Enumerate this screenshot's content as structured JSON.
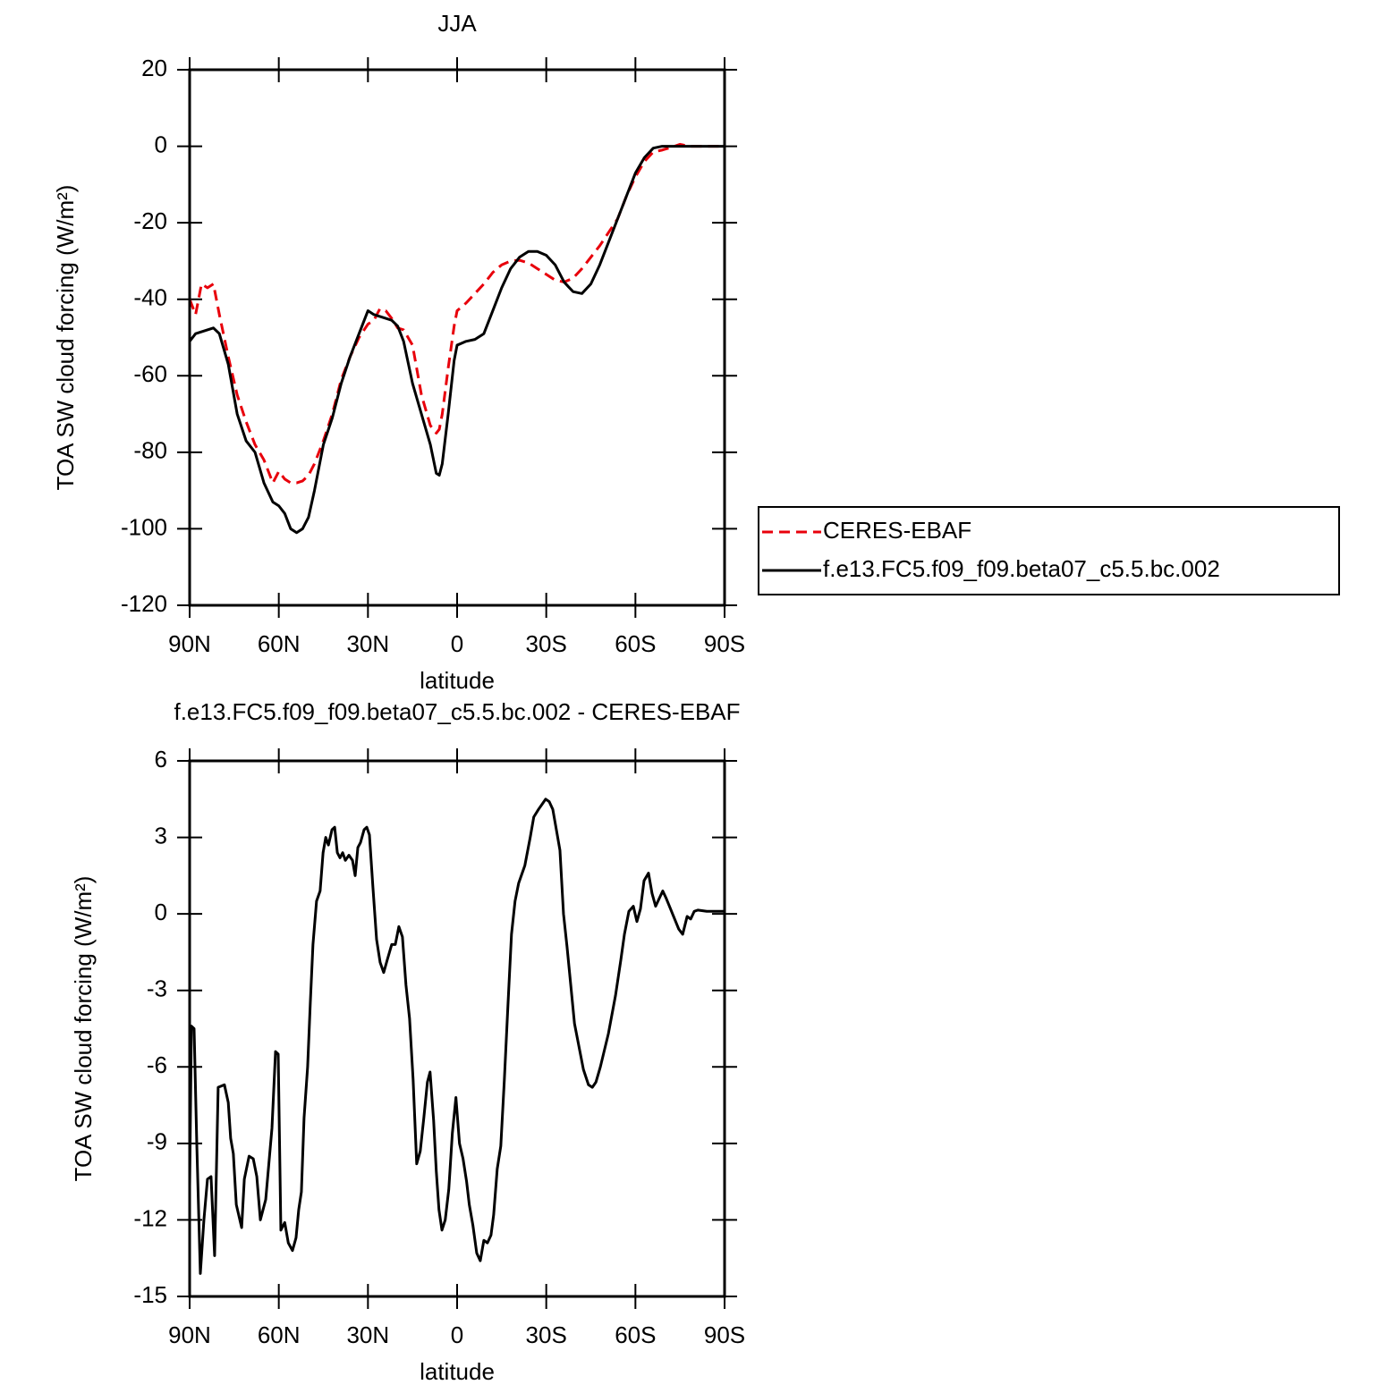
{
  "chart_data": [
    {
      "type": "line",
      "title": "JJA",
      "xlabel": "latitude",
      "ylabel": "TOA SW cloud forcing (W/m²)",
      "xlim": [
        90,
        -90
      ],
      "ylim": [
        -120,
        20
      ],
      "xticks": [
        {
          "value": 90,
          "label": "90N"
        },
        {
          "value": 60,
          "label": "60N"
        },
        {
          "value": 30,
          "label": "30N"
        },
        0,
        {
          "value": -30,
          "label": "30S"
        },
        {
          "value": -60,
          "label": "60S"
        },
        {
          "value": -90,
          "label": "90S"
        }
      ],
      "yticks": [
        -120,
        -100,
        -80,
        -60,
        -40,
        -20,
        0,
        20
      ],
      "legend": "right",
      "x": [
        90,
        88,
        86,
        84,
        82,
        80,
        77,
        74,
        71,
        68,
        65,
        62,
        60,
        58,
        56,
        54,
        52,
        50,
        48,
        45,
        42,
        39,
        36,
        33,
        30,
        28,
        26,
        24,
        22,
        20,
        18,
        15,
        12,
        9,
        7,
        6,
        5,
        3,
        1,
        0,
        -3,
        -6,
        -9,
        -12,
        -15,
        -18,
        -21,
        -24,
        -27,
        -30,
        -33,
        -36,
        -39,
        -42,
        -45,
        -48,
        -51,
        -54,
        -57,
        -60,
        -63,
        -66,
        -69,
        -72,
        -75,
        -78,
        -81,
        -84,
        -87,
        -90
      ],
      "series": [
        {
          "name": "CERES-EBAF",
          "color": "#e8000b",
          "linestyle": "dashed",
          "values": [
            -40,
            -44,
            -36,
            -37,
            -36,
            -44,
            -55,
            -65,
            -72,
            -78,
            -82,
            -88,
            -85,
            -87,
            -88,
            -88,
            -87.5,
            -86,
            -83,
            -77,
            -70,
            -61,
            -55,
            -50,
            -46.5,
            -45.5,
            -42.5,
            -43,
            -45,
            -47.5,
            -48,
            -52,
            -65,
            -73,
            -75,
            -74,
            -70,
            -58,
            -47,
            -43,
            -41,
            -38.5,
            -36,
            -33,
            -31,
            -30,
            -29.8,
            -30.5,
            -32,
            -33.5,
            -35,
            -35.5,
            -34.5,
            -32,
            -29,
            -26,
            -22.5,
            -19,
            -13,
            -8,
            -4,
            -1.5,
            -1,
            -0.3,
            0.5,
            0,
            0,
            0,
            0,
            0
          ]
        },
        {
          "name": "f.e13.FC5.f09_f09.beta07_c5.5.bc.002",
          "color": "#000000",
          "linestyle": "solid",
          "values": [
            -51,
            -49,
            -48.5,
            -48,
            -47.5,
            -49,
            -57,
            -70,
            -77,
            -80,
            -88,
            -93,
            -94,
            -96,
            -100,
            -101,
            -100,
            -97,
            -90,
            -78,
            -71,
            -62,
            -55,
            -49,
            -43,
            -44,
            -44.5,
            -45,
            -45.5,
            -47,
            -51,
            -62,
            -70,
            -78,
            -85.5,
            -86,
            -83,
            -70,
            -56,
            -52,
            -51,
            -50.5,
            -49,
            -43,
            -37,
            -32,
            -29,
            -27.5,
            -27.5,
            -28.5,
            -31,
            -35.5,
            -38,
            -38.5,
            -36,
            -31,
            -25,
            -19,
            -13,
            -7,
            -3,
            -0.5,
            0,
            0,
            0,
            0,
            0,
            0,
            0,
            0
          ]
        }
      ]
    },
    {
      "type": "line",
      "title": "f.e13.FC5.f09_f09.beta07_c5.5.bc.002 - CERES-EBAF",
      "xlabel": "latitude",
      "ylabel": "TOA SW cloud forcing (W/m²)",
      "xlim": [
        90,
        -90
      ],
      "ylim": [
        -15,
        6
      ],
      "xticks": [
        {
          "value": 90,
          "label": "90N"
        },
        {
          "value": 60,
          "label": "60N"
        },
        {
          "value": 30,
          "label": "30N"
        },
        0,
        {
          "value": -30,
          "label": "30S"
        },
        {
          "value": -60,
          "label": "60S"
        },
        {
          "value": -90,
          "label": "90S"
        }
      ],
      "yticks": [
        -15,
        -12,
        -9,
        -6,
        -3,
        0,
        3,
        6
      ],
      "x": [
        90,
        89.4,
        88.5,
        87.6,
        86.4,
        85.2,
        84,
        82.8,
        81.6,
        80.4,
        78.3,
        77,
        76.2,
        75.3,
        74.3,
        72.5,
        71.6,
        70,
        68.6,
        67.4,
        66.2,
        64.4,
        62.3,
        61.1,
        60.2,
        59.3,
        58,
        56.8,
        55.4,
        54.2,
        53.3,
        52.4,
        51.5,
        50.3,
        49.4,
        48.5,
        47.3,
        46.1,
        45.1,
        44.2,
        43.3,
        42.1,
        41.2,
        40.3,
        39.4,
        38.5,
        37.6,
        36.4,
        35.2,
        34.3,
        33.4,
        32.5,
        31.3,
        30.4,
        29.5,
        28.3,
        27.1,
        25.9,
        24.7,
        23.5,
        22,
        20.8,
        19.6,
        18.4,
        17.2,
        16,
        14.8,
        13.6,
        12.4,
        11.2,
        10,
        9.1,
        7.9,
        7,
        6.1,
        5.1,
        4,
        2.8,
        1.6,
        0.4,
        -0.8,
        -2,
        -3.2,
        -4.1,
        -5.3,
        -6.6,
        -7.8,
        -9,
        -10.2,
        -11.4,
        -12.3,
        -13.5,
        -14.7,
        -15.9,
        -17.1,
        -18.3,
        -19.5,
        -20.7,
        -22.8,
        -24.6,
        -25.8,
        -27.4,
        -28.6,
        -29.8,
        -31,
        -32.2,
        -33.4,
        -34.6,
        -35.8,
        -37,
        -39.5,
        -42.5,
        -44.2,
        -45.5,
        -46.7,
        -48.2,
        -50.9,
        -53.3,
        -55.1,
        -56.3,
        -57.8,
        -59.3,
        -60.5,
        -61.7,
        -62.9,
        -64.4,
        -65.6,
        -66.8,
        -68,
        -69.2,
        -70.4,
        -72.5,
        -74.6,
        -75.9,
        -77.4,
        -78.6,
        -79.8,
        -81,
        -84,
        -90
      ],
      "color": "#000000",
      "values": [
        -10.7,
        -4.4,
        -4.5,
        -9,
        -14.1,
        -12,
        -10.4,
        -10.3,
        -13.4,
        -6.8,
        -6.7,
        -7.4,
        -8.8,
        -9.4,
        -11.4,
        -12.3,
        -10.4,
        -9.5,
        -9.6,
        -10.3,
        -12,
        -11.2,
        -8.4,
        -5.4,
        -5.5,
        -12.4,
        -12.1,
        -12.9,
        -13.2,
        -12.7,
        -11.6,
        -10.9,
        -8,
        -6,
        -3.5,
        -1.2,
        0.5,
        0.9,
        2.4,
        3,
        2.7,
        3.3,
        3.4,
        2.4,
        2.2,
        2.4,
        2.1,
        2.3,
        2.1,
        1.5,
        2.6,
        2.8,
        3.3,
        3.4,
        3.1,
        1,
        -1,
        -1.9,
        -2.3,
        -1.8,
        -1.2,
        -1.2,
        -0.5,
        -0.9,
        -2.8,
        -4.1,
        -6.5,
        -9.8,
        -9.3,
        -8,
        -6.6,
        -6.2,
        -8.1,
        -10.1,
        -11.6,
        -12.4,
        -12,
        -10.8,
        -8.6,
        -7.2,
        -9,
        -9.6,
        -10.5,
        -11.4,
        -12.2,
        -13.3,
        -13.6,
        -12.8,
        -12.9,
        -12.6,
        -11.8,
        -10,
        -9.1,
        -6.5,
        -3.6,
        -0.8,
        0.5,
        1.2,
        1.9,
        3,
        3.8,
        4.1,
        4.3,
        4.5,
        4.4,
        4.1,
        3.3,
        2.5,
        0,
        -1.3,
        -4.3,
        -6.1,
        -6.7,
        -6.8,
        -6.6,
        -6,
        -4.7,
        -3.2,
        -1.8,
        -0.8,
        0.1,
        0.3,
        -0.3,
        0.2,
        1.3,
        1.6,
        0.8,
        0.3,
        0.6,
        0.9,
        0.6,
        0,
        -0.6,
        -0.8,
        -0.1,
        -0.2,
        0.1,
        0.15,
        0.1,
        0.1
      ]
    }
  ]
}
